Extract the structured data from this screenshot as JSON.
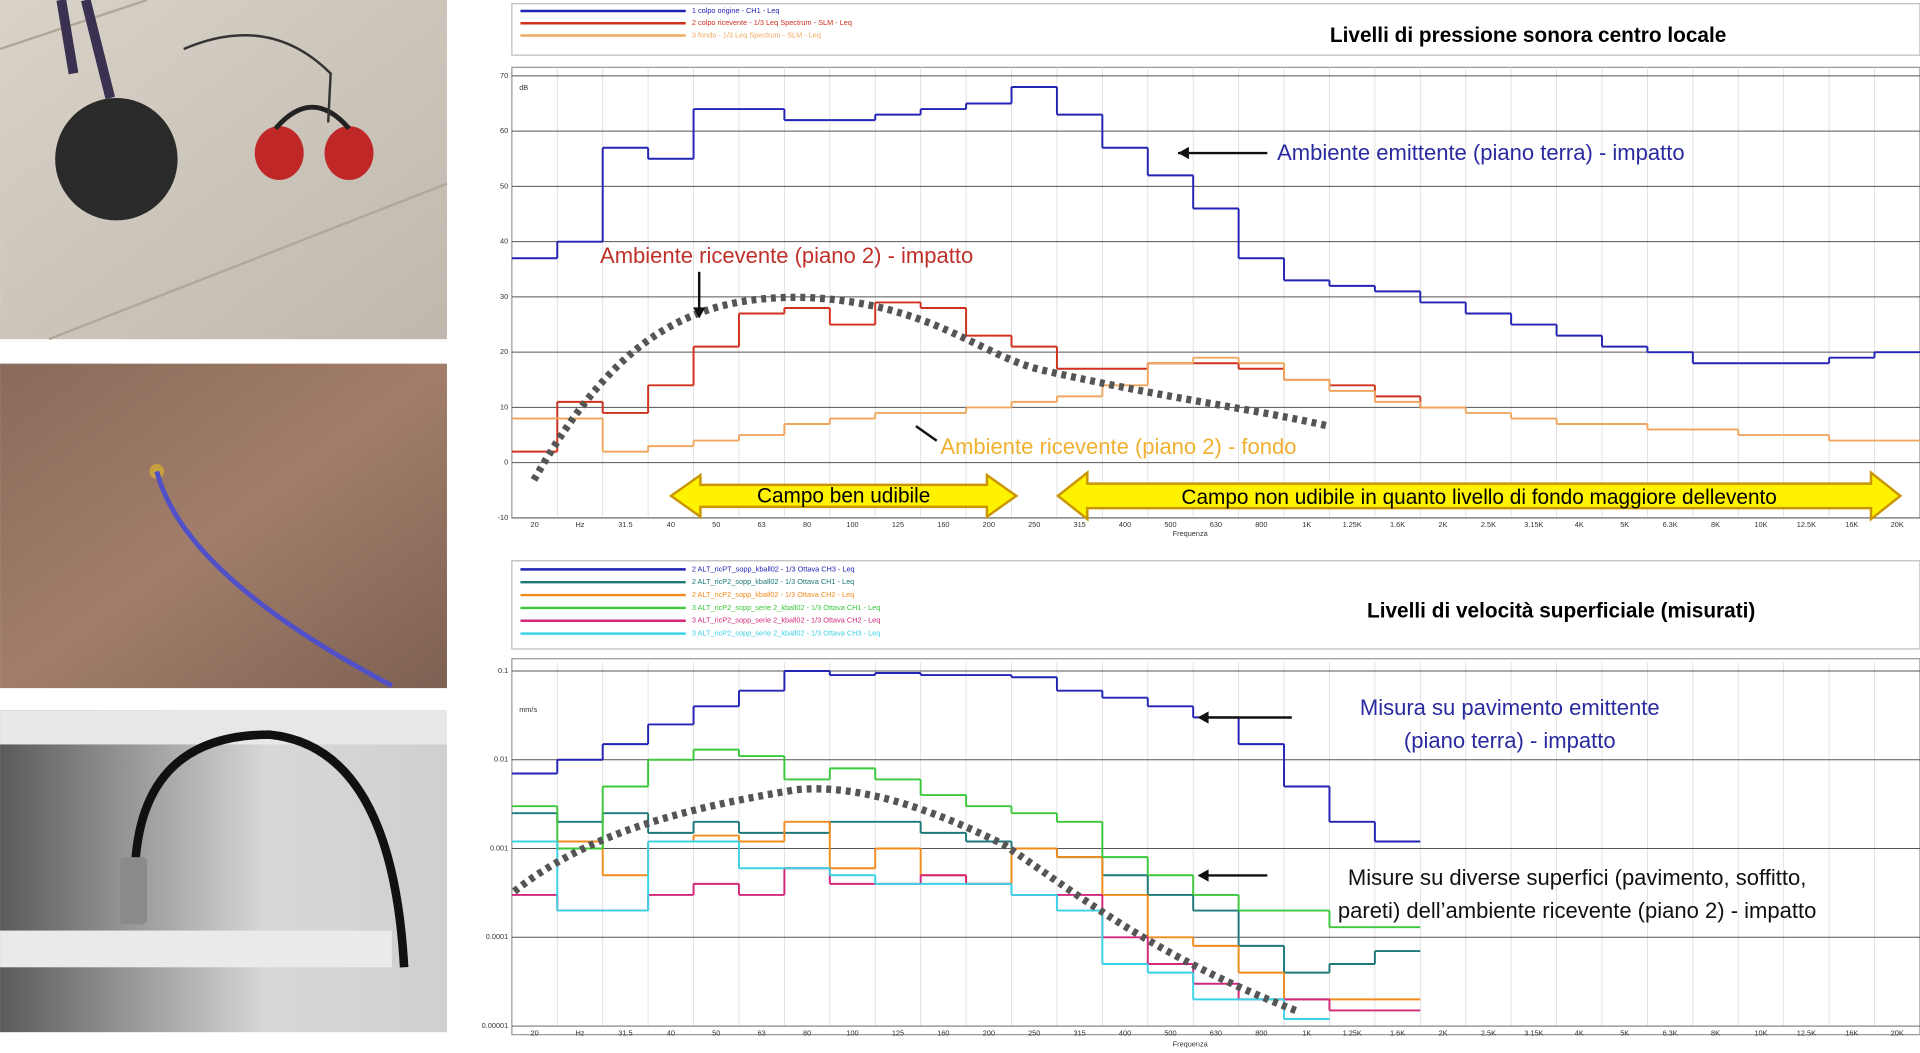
{
  "chart_data": [
    {
      "type": "line",
      "title": "Livelli di pressione sonora centro locale",
      "x_label": "Frequenza",
      "y_unit": "dB",
      "categories": [
        "20",
        "Hz",
        "31.5",
        "40",
        "50",
        "63",
        "80",
        "100",
        "125",
        "160",
        "200",
        "250",
        "315",
        "400",
        "500",
        "630",
        "800",
        "1K",
        "1.25K",
        "1.6K",
        "2K",
        "2.5K",
        "3.15K",
        "4K",
        "5K",
        "6.3K",
        "8K",
        "10K",
        "12.5K",
        "16K",
        "20K"
      ],
      "ylim": [
        -10,
        70
      ],
      "yticks": [
        -10,
        0,
        10,
        20,
        30,
        40,
        50,
        60,
        70
      ],
      "grid": true,
      "log_scale": false,
      "series": [
        {
          "name": "1 colpo origine - CH1 - Leq",
          "color": "#2323b4",
          "values": [
            37,
            40,
            57,
            55,
            64,
            64,
            62,
            62,
            63,
            64,
            65,
            68,
            63,
            57,
            52,
            46,
            37,
            33,
            32,
            31,
            29,
            27,
            25,
            23,
            21,
            20,
            18,
            18,
            18,
            19,
            20
          ]
        },
        {
          "name": "2 colpo ricevente - 1/3 Leq Spectrum - SLM - Leq",
          "color": "#d0301e",
          "values": [
            2,
            11,
            9,
            14,
            21,
            27,
            28,
            25,
            29,
            28,
            23,
            21,
            17,
            17,
            18,
            18,
            17,
            15,
            14,
            12,
            10,
            null,
            null,
            null,
            null,
            null,
            null,
            null,
            null,
            null,
            null
          ]
        },
        {
          "name": "3 fondo - 1/3 Leq Spectrum - SLM - Leq",
          "color": "#f0a860",
          "values": [
            8,
            8,
            2,
            3,
            4,
            5,
            7,
            8,
            9,
            9,
            10,
            11,
            12,
            14,
            18,
            19,
            18,
            15,
            13,
            11,
            10,
            9,
            8,
            7,
            7,
            6,
            6,
            5,
            5,
            4,
            4
          ]
        }
      ],
      "annotations": [
        "Ambiente emittente (piano terra) - impatto",
        "Ambiente ricevente (piano 2) - impatto",
        "Ambiente ricevente (piano 2) - fondo",
        "Campo ben udibile",
        "Campo non udibile in quanto  livello di fondo maggiore dellevento"
      ]
    },
    {
      "type": "line",
      "title": "Livelli di velocità superficiale (misurati)",
      "x_label": "Frequenza",
      "y_unit": "mm/s",
      "categories": [
        "20",
        "Hz",
        "31.5",
        "40",
        "50",
        "63",
        "80",
        "100",
        "125",
        "160",
        "200",
        "250",
        "315",
        "400",
        "500",
        "630",
        "800",
        "1K",
        "1.25K",
        "1.6K",
        "2K",
        "2.5K",
        "3.15K",
        "4K",
        "5K",
        "6.3K",
        "8K",
        "10K",
        "12.5K",
        "16K",
        "20K"
      ],
      "ylim": [
        1e-05,
        0.1
      ],
      "yticks": [
        1e-05,
        0.0001,
        0.001,
        0.01,
        0.1
      ],
      "grid": true,
      "log_scale": true,
      "series": [
        {
          "name": "2 ALT_ricPT_sopp_kball02 - 1/3 Ottava CH3 - Leq",
          "color": "#2323b4",
          "values": [
            0.007,
            0.01,
            0.015,
            0.025,
            0.04,
            0.06,
            0.1,
            0.09,
            0.095,
            0.09,
            0.09,
            0.085,
            0.06,
            0.05,
            0.04,
            0.03,
            0.015,
            0.005,
            0.002,
            0.0012,
            null,
            null,
            null,
            null,
            null,
            null,
            null,
            null,
            null,
            null,
            null
          ]
        },
        {
          "name": "2 ALT_ricP2_sopp_kball02 - 1/3 Ottava CH1 - Leq",
          "color": "#1e7878",
          "values": [
            0.0025,
            0.002,
            0.0025,
            0.0015,
            0.002,
            0.0015,
            0.0015,
            0.002,
            0.002,
            0.0015,
            0.0012,
            0.001,
            0.0008,
            0.0005,
            0.0003,
            0.0002,
            8e-05,
            4e-05,
            5e-05,
            7e-05,
            null,
            null,
            null,
            null,
            null,
            null,
            null,
            null,
            null,
            null,
            null
          ]
        },
        {
          "name": "2 ALT_ricP2_sopp_kball02 - 1/3 Ottava CH2 - Leq",
          "color": "#f08c1e",
          "values": [
            0.0012,
            0.0012,
            0.0005,
            0.0012,
            0.0014,
            0.0012,
            0.002,
            0.0006,
            0.001,
            0.0005,
            0.0004,
            0.001,
            0.0008,
            0.0003,
            0.0001,
            8e-05,
            4e-05,
            2e-05,
            2e-05,
            2e-05,
            null,
            null,
            null,
            null,
            null,
            null,
            null,
            null,
            null,
            null,
            null
          ]
        },
        {
          "name": "3 ALT_ricP2_sopp_serie 2_kball02 - 1/3 Ottava CH1 - Leq",
          "color": "#3cc83c",
          "values": [
            0.003,
            0.001,
            0.005,
            0.01,
            0.013,
            0.011,
            0.006,
            0.008,
            0.006,
            0.004,
            0.003,
            0.0025,
            0.002,
            0.0008,
            0.0005,
            0.0003,
            0.0002,
            0.0002,
            0.00013,
            0.00013,
            null,
            null,
            null,
            null,
            null,
            null,
            null,
            null,
            null,
            null,
            null
          ]
        },
        {
          "name": "3 ALT_ricP2_sopp_serie 2_kball02 - 1/3 Ottava CH2 - Leq",
          "color": "#d2287c",
          "values": [
            0.0003,
            0.0002,
            0.0002,
            0.0003,
            0.0004,
            0.0003,
            0.0006,
            0.0004,
            0.0004,
            0.0005,
            0.0004,
            0.0003,
            0.0003,
            0.0001,
            5e-05,
            3e-05,
            2e-05,
            2e-05,
            1.5e-05,
            1.5e-05,
            null,
            null,
            null,
            null,
            null,
            null,
            null,
            null,
            null,
            null,
            null
          ]
        },
        {
          "name": "3 ALT_ricP2_sopp_serie 2_kball02 - 1/3 Ottava CH3 - Leq",
          "color": "#3cd2e6",
          "values": [
            0.0012,
            0.0002,
            0.0002,
            0.0012,
            0.0012,
            0.0006,
            0.0006,
            0.0005,
            0.0004,
            0.0004,
            0.0004,
            0.0003,
            0.0002,
            5e-05,
            4e-05,
            2e-05,
            2e-05,
            1.2e-05,
            null,
            null,
            null,
            null,
            null,
            null,
            null,
            null,
            null,
            null,
            null,
            null,
            null
          ]
        }
      ],
      "annotations": [
        "Misura su pavimento emittente",
        "(piano terra) - impatto",
        "Misure su diverse superfici (pavimento, soffitto,",
        "pareti) dell’ambiente ricevente (piano 2) - impatto"
      ]
    }
  ]
}
